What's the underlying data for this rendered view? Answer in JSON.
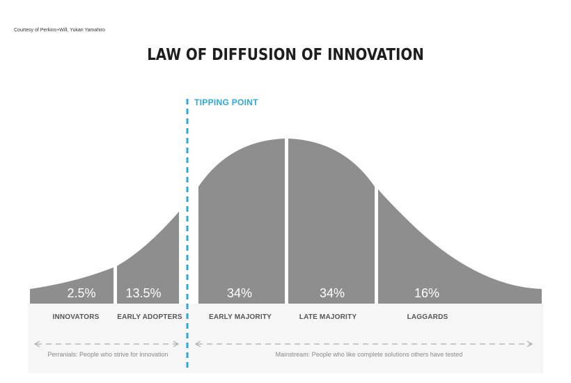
{
  "credit": "Courtesy of Perkins+Will, Yukari Yamahiro",
  "title": "LAW OF DIFFUSION OF INNOVATION",
  "tipping_point": "TIPPING POINT",
  "segments": [
    {
      "label": "INNOVATORS",
      "percent": "2.5%"
    },
    {
      "label": "EARLY ADOPTERS",
      "percent": "13.5%"
    },
    {
      "label": "EARLY MAJORITY",
      "percent": "34%"
    },
    {
      "label": "LATE MAJORITY",
      "percent": "34%"
    },
    {
      "label": "LAGGARDS",
      "percent": "16%"
    }
  ],
  "groups": {
    "left": "Perranials: People who strive for innovation",
    "right": "Mainstream: People who like complete solutions others have tested"
  },
  "colors": {
    "curve": "#8e8e8e",
    "tipping": "#2aa9dc",
    "base": "#f6f6f6"
  }
}
